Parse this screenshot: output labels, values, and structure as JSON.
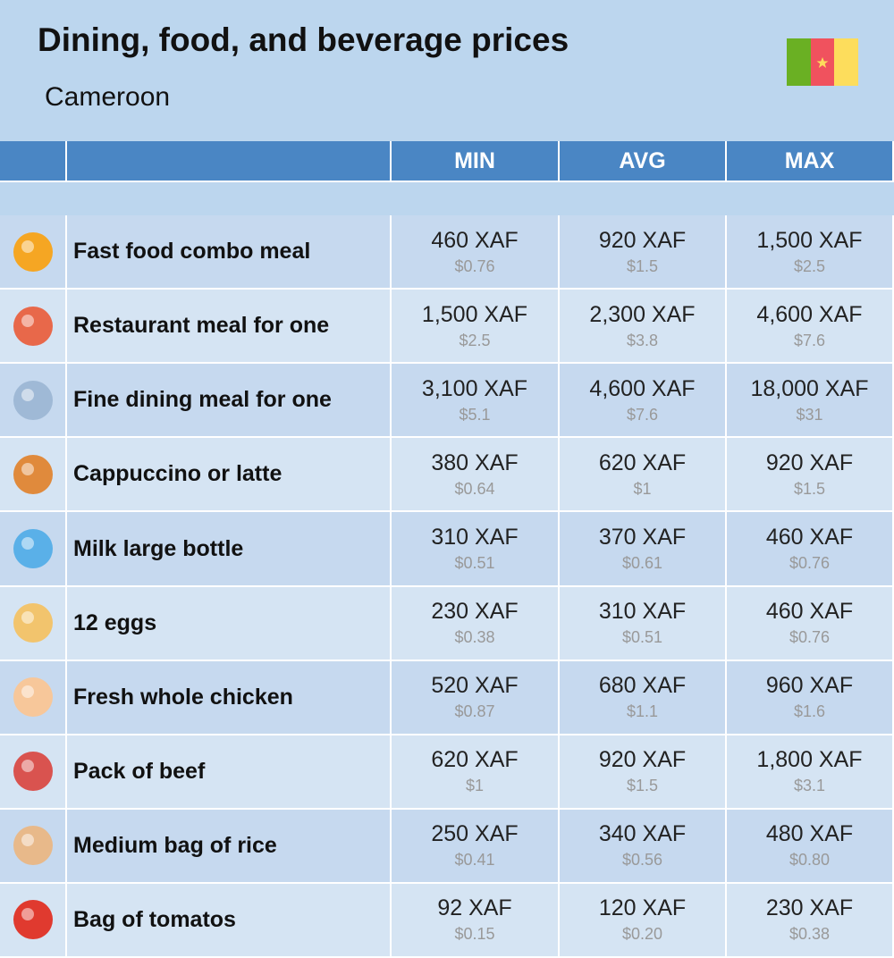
{
  "header": {
    "title": "Dining, food, and beverage prices",
    "subtitle": "Cameroon"
  },
  "table": {
    "columns": [
      "MIN",
      "AVG",
      "MAX"
    ],
    "rows": [
      {
        "label": "Fast food combo meal",
        "cells": [
          [
            "460 XAF",
            "$0.76"
          ],
          [
            "920 XAF",
            "$1.5"
          ],
          [
            "1,500 XAF",
            "$2.5"
          ]
        ]
      },
      {
        "label": "Restaurant meal for one",
        "cells": [
          [
            "1,500 XAF",
            "$2.5"
          ],
          [
            "2,300 XAF",
            "$3.8"
          ],
          [
            "4,600 XAF",
            "$7.6"
          ]
        ]
      },
      {
        "label": "Fine dining meal for one",
        "cells": [
          [
            "3,100 XAF",
            "$5.1"
          ],
          [
            "4,600 XAF",
            "$7.6"
          ],
          [
            "18,000 XAF",
            "$31"
          ]
        ]
      },
      {
        "label": "Cappuccino or latte",
        "cells": [
          [
            "380 XAF",
            "$0.64"
          ],
          [
            "620 XAF",
            "$1"
          ],
          [
            "920 XAF",
            "$1.5"
          ]
        ]
      },
      {
        "label": "Milk large bottle",
        "cells": [
          [
            "310 XAF",
            "$0.51"
          ],
          [
            "370 XAF",
            "$0.61"
          ],
          [
            "460 XAF",
            "$0.76"
          ]
        ]
      },
      {
        "label": "12 eggs",
        "cells": [
          [
            "230 XAF",
            "$0.38"
          ],
          [
            "310 XAF",
            "$0.51"
          ],
          [
            "460 XAF",
            "$0.76"
          ]
        ]
      },
      {
        "label": "Fresh whole chicken",
        "cells": [
          [
            "520 XAF",
            "$0.87"
          ],
          [
            "680 XAF",
            "$1.1"
          ],
          [
            "960 XAF",
            "$1.6"
          ]
        ]
      },
      {
        "label": "Pack of beef",
        "cells": [
          [
            "620 XAF",
            "$1"
          ],
          [
            "920 XAF",
            "$1.5"
          ],
          [
            "1,800 XAF",
            "$3.1"
          ]
        ]
      },
      {
        "label": "Medium bag of rice",
        "cells": [
          [
            "250 XAF",
            "$0.41"
          ],
          [
            "340 XAF",
            "$0.56"
          ],
          [
            "480 XAF",
            "$0.80"
          ]
        ]
      },
      {
        "label": "Bag of tomatos",
        "cells": [
          [
            "92 XAF",
            "$0.15"
          ],
          [
            "120 XAF",
            "$0.20"
          ],
          [
            "230 XAF",
            "$0.38"
          ]
        ]
      }
    ]
  }
}
